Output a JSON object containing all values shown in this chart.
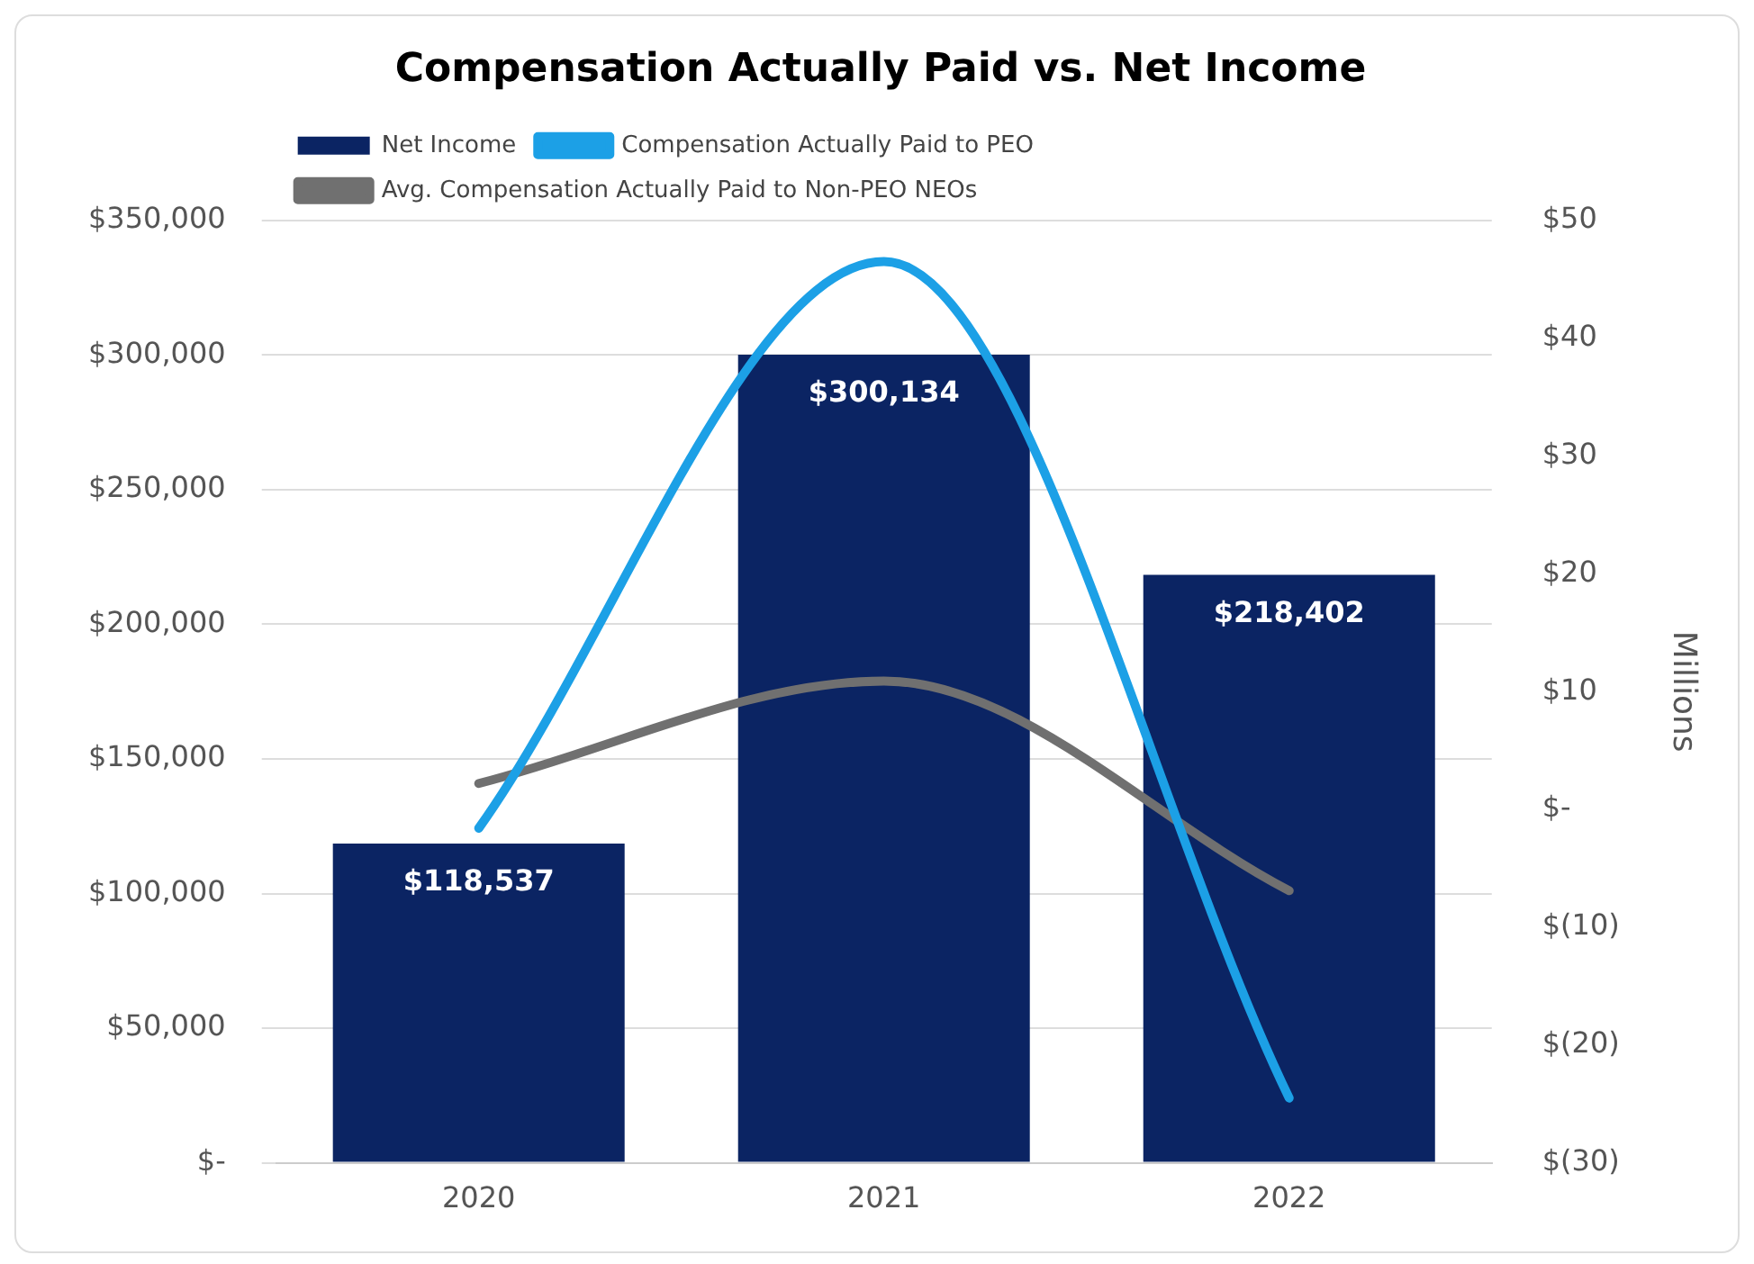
{
  "chart_data": {
    "type": "bar",
    "title": "Compensation Actually Paid vs. Net Income",
    "y2label": "Millions",
    "categories": [
      "2020",
      "2021",
      "2022"
    ],
    "series": [
      {
        "name": "Net Income",
        "color": "#0b2463",
        "values": [
          118537,
          300134,
          218402
        ],
        "value_labels": [
          "$118,537",
          "$300,134",
          "$218,402"
        ]
      },
      {
        "name": "Compensation Actually Paid to PEO",
        "type": "line",
        "axis": "y2",
        "color": "#1ca0e6",
        "values": [
          -1.6,
          46.5,
          -24.5
        ]
      },
      {
        "name": "Avg. Compensation Actually Paid to Non-PEO NEOs",
        "type": "line",
        "axis": "y2",
        "color": "#707070",
        "values": [
          2.2,
          10.9,
          -6.9
        ]
      }
    ],
    "ylim": [
      0,
      350000
    ],
    "yticks": [
      {
        "value": 0,
        "label": "$-"
      },
      {
        "value": 50000,
        "label": "$50,000"
      },
      {
        "value": 100000,
        "label": "$100,000"
      },
      {
        "value": 150000,
        "label": "$150,000"
      },
      {
        "value": 200000,
        "label": "$200,000"
      },
      {
        "value": 250000,
        "label": "$250,000"
      },
      {
        "value": 300000,
        "label": "$300,000"
      },
      {
        "value": 350000,
        "label": "$350,000"
      }
    ],
    "y2lim": [
      -30,
      50
    ],
    "y2ticks": [
      {
        "value": -30,
        "label": "$(30)"
      },
      {
        "value": -20,
        "label": "$(20)"
      },
      {
        "value": -10,
        "label": "$(10)"
      },
      {
        "value": 0,
        "label": "$-"
      },
      {
        "value": 10,
        "label": "$10"
      },
      {
        "value": 20,
        "label": "$20"
      },
      {
        "value": 30,
        "label": "$30"
      },
      {
        "value": 40,
        "label": "$40"
      },
      {
        "value": 50,
        "label": "$50"
      }
    ],
    "grid": "y",
    "legend": "top left",
    "marker": "none",
    "line_style": "solid"
  }
}
